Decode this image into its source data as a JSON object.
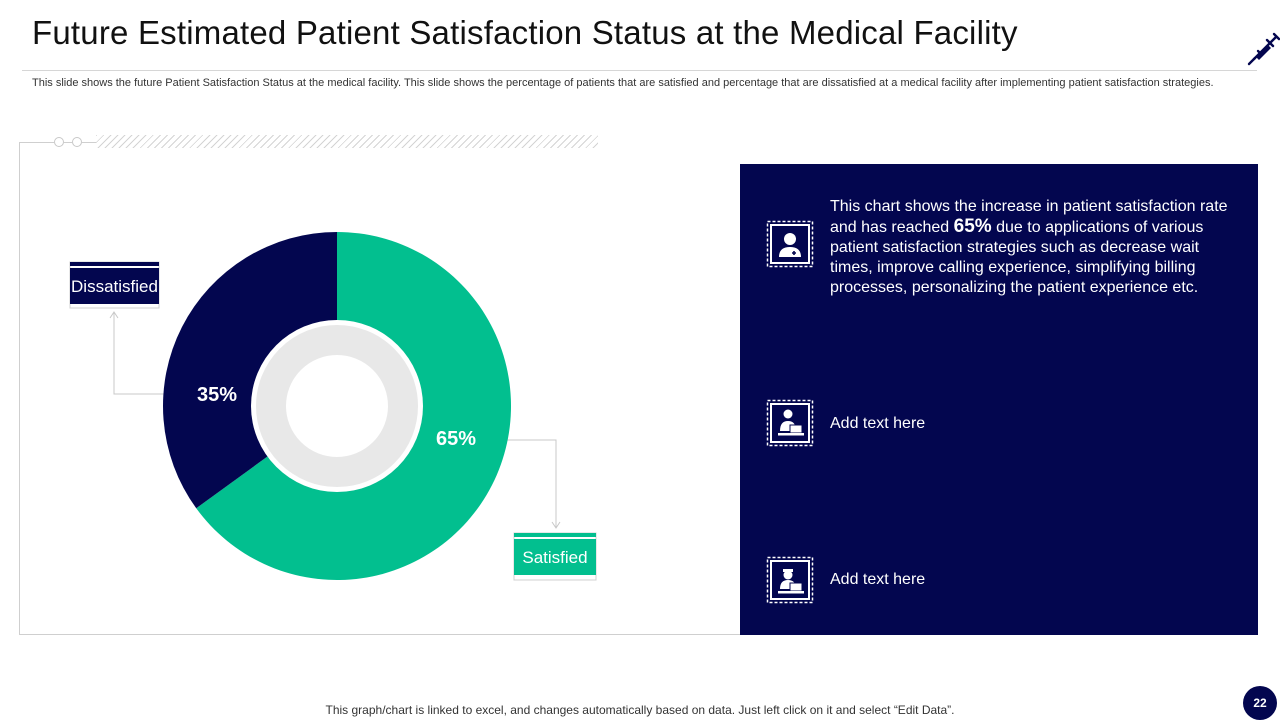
{
  "slide": {
    "title": "Future Estimated Patient Satisfaction Status at the Medical Facility",
    "subtitle": "This slide shows the future Patient Satisfaction Status at the medical facility. This slide shows the percentage of patients that are satisfied and percentage that are dissatisfied at a medical facility after implementing patient satisfaction strategies.",
    "footnote": "This graph/chart is linked to excel,  and changes automatically based on data. Just left click on it and select “Edit Data”.",
    "page_number": "22"
  },
  "chart_data": {
    "type": "pie",
    "donut": true,
    "categories": [
      "Satisfied",
      "Dissatisfied"
    ],
    "values": [
      65,
      35
    ],
    "data_labels": [
      "65%",
      "35%"
    ],
    "unit": "%",
    "colors": [
      "#02bf8f",
      "#03064f"
    ],
    "title": ""
  },
  "panel": {
    "items": [
      {
        "icon": "doctor-icon",
        "text_before": "This chart shows the increase in patient satisfaction rate and has reached ",
        "highlight": "65%",
        "text_after": " due to applications of various patient satisfaction strategies such as decrease wait times, improve calling experience, simplifying billing processes, personalizing the patient experience etc."
      },
      {
        "icon": "doctor-laptop-icon",
        "text": "Add text here"
      },
      {
        "icon": "nurse-laptop-icon",
        "text": "Add text here"
      }
    ]
  },
  "colors": {
    "navy": "#03064f",
    "green": "#02bf8f",
    "ring": "#e8e8e8"
  }
}
